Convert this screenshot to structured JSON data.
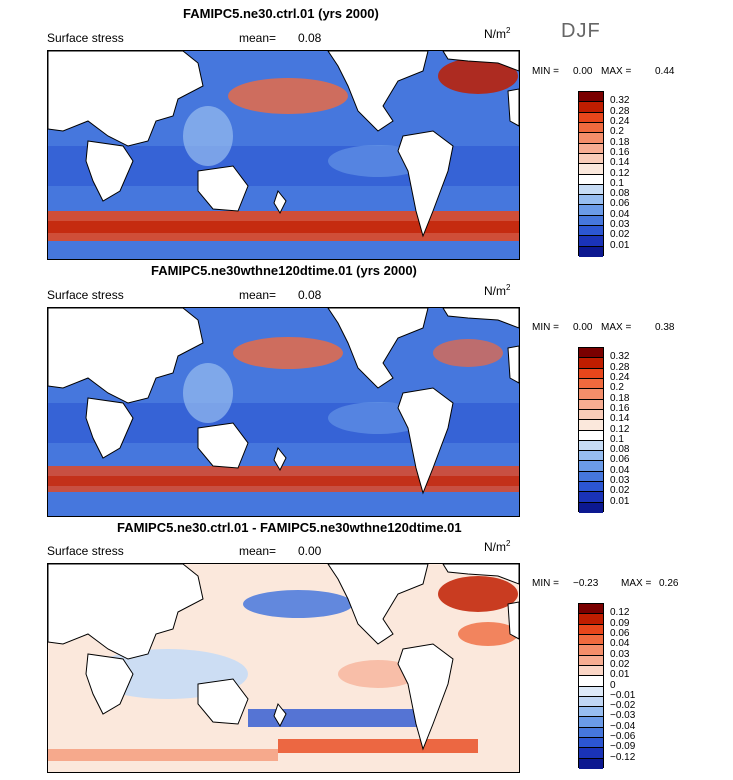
{
  "season": "DJF",
  "units": "N/m",
  "units_sup": "2",
  "panels": [
    {
      "title": "FAMIPC5.ne30.ctrl.01 (yrs 2000)",
      "variable": "Surface stress",
      "mean_label": "mean=",
      "mean": "0.08",
      "min_label": "MIN =",
      "min": "0.00",
      "max_label": "MAX =",
      "max": "0.44",
      "colorbar_levels": [
        "0.32",
        "0.28",
        "0.24",
        "0.2",
        "0.18",
        "0.16",
        "0.14",
        "0.12",
        "0.1",
        "0.08",
        "0.06",
        "0.04",
        "0.03",
        "0.02",
        "0.01"
      ]
    },
    {
      "title": "FAMIPC5.ne30wthne120dtime.01 (yrs 2000)",
      "variable": "Surface stress",
      "mean_label": "mean=",
      "mean": "0.08",
      "min_label": "MIN =",
      "min": "0.00",
      "max_label": "MAX =",
      "max": "0.38",
      "colorbar_levels": [
        "0.32",
        "0.28",
        "0.24",
        "0.2",
        "0.18",
        "0.16",
        "0.14",
        "0.12",
        "0.1",
        "0.08",
        "0.06",
        "0.04",
        "0.03",
        "0.02",
        "0.01"
      ]
    },
    {
      "title": "FAMIPC5.ne30.ctrl.01 - FAMIPC5.ne30wthne120dtime.01",
      "variable": "Surface stress",
      "mean_label": "mean=",
      "mean": "0.00",
      "min_label": "MIN =",
      "min": "−0.23",
      "max_label": "MAX =",
      "max": "0.26",
      "colorbar_levels": [
        "0.12",
        "0.09",
        "0.06",
        "0.04",
        "0.03",
        "0.02",
        "0.01",
        "0",
        "−0.01",
        "−0.02",
        "−0.03",
        "−0.04",
        "−0.06",
        "−0.09",
        "−0.12"
      ]
    }
  ],
  "colors": {
    "abs_scale": [
      "#7a0000",
      "#c01d00",
      "#e8461b",
      "#f06a3e",
      "#f48e6a",
      "#f7ad92",
      "#f9ccb8",
      "#fbe8dc",
      "#ffffff",
      "#c7dcf5",
      "#97bdf0",
      "#6b9be8",
      "#4677dd",
      "#2c56d2",
      "#1a33b8",
      "#0c1890"
    ],
    "diff_scale": [
      "#7a0000",
      "#c01d00",
      "#e8461b",
      "#f06a3e",
      "#f48e6a",
      "#f7ad92",
      "#fbd6c6",
      "#ffffff",
      "#dde9f8",
      "#c0d6f4",
      "#97bdf0",
      "#6b9be8",
      "#4677dd",
      "#2c56d2",
      "#1a33b8",
      "#0c1890"
    ],
    "land": "#ffffff",
    "coast": "#000000"
  }
}
